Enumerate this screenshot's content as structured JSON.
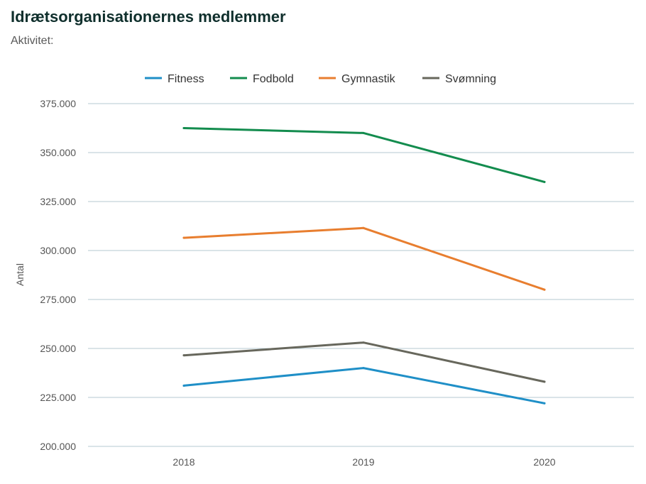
{
  "title": "Idrætsorganisationernes medlemmer",
  "subtitle": "Aktivitet:",
  "chart_data": {
    "type": "line",
    "x": [
      "2018",
      "2019",
      "2020"
    ],
    "ylabel": "Antal",
    "ylim": [
      200000,
      375000
    ],
    "yticks": [
      {
        "value": 200000,
        "label": "200.000"
      },
      {
        "value": 225000,
        "label": "225.000"
      },
      {
        "value": 250000,
        "label": "250.000"
      },
      {
        "value": 275000,
        "label": "275.000"
      },
      {
        "value": 300000,
        "label": "300.000"
      },
      {
        "value": 325000,
        "label": "325.000"
      },
      {
        "value": 350000,
        "label": "350.000"
      },
      {
        "value": 375000,
        "label": "375.000"
      }
    ],
    "grid": true,
    "legend_position": "top",
    "series": [
      {
        "name": "Fitness",
        "color": "#1f8fc7",
        "values": [
          231000,
          240000,
          222000
        ]
      },
      {
        "name": "Fodbold",
        "color": "#138c4e",
        "values": [
          362500,
          360000,
          335000
        ]
      },
      {
        "name": "Gymnastik",
        "color": "#e87e2f",
        "values": [
          306500,
          311500,
          280000
        ]
      },
      {
        "name": "Svømning",
        "color": "#67675c",
        "values": [
          246500,
          253000,
          233000
        ]
      }
    ]
  }
}
